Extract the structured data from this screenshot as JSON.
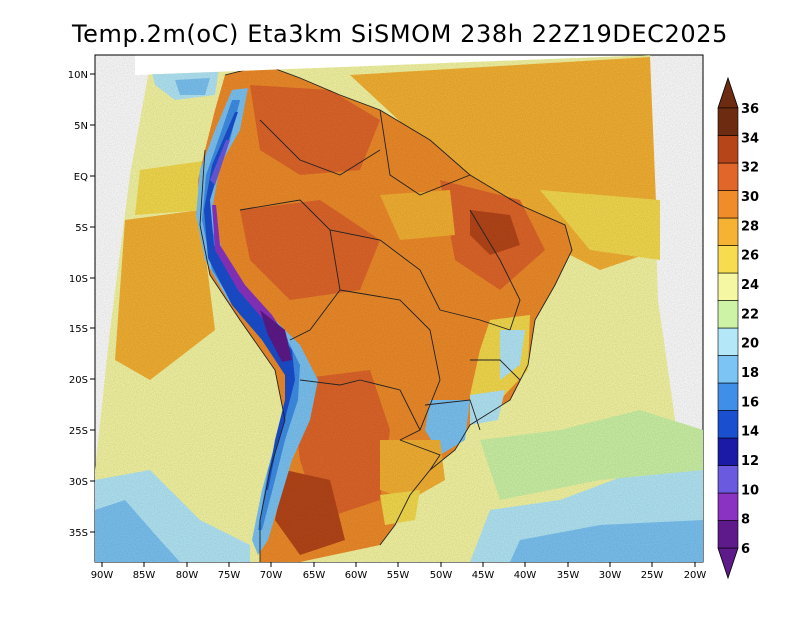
{
  "title": "Temp.2m(oC) Eta3km SiSMOM 238h 22Z19DEC2025",
  "map": {
    "lat_labels": [
      "10N",
      "5N",
      "EQ",
      "5S",
      "10S",
      "15S",
      "20S",
      "25S",
      "30S",
      "35S"
    ],
    "lon_labels": [
      "90W",
      "85W",
      "80W",
      "75W",
      "70W",
      "65W",
      "60W",
      "55W",
      "50W",
      "45W",
      "40W",
      "35W",
      "30W",
      "25W",
      "20W"
    ]
  },
  "colorbar": {
    "labels": [
      "6",
      "8",
      "10",
      "12",
      "14",
      "16",
      "18",
      "20",
      "22",
      "24",
      "26",
      "28",
      "30",
      "32",
      "34",
      "36"
    ],
    "colors": [
      "#5e1a8a",
      "#8a33c2",
      "#6a5ae0",
      "#1a1aa6",
      "#1a4fd0",
      "#3f8fe8",
      "#7cc4f4",
      "#b4e8f8",
      "#cdf4a6",
      "#f6f7a3",
      "#f6dc4e",
      "#f6b233",
      "#f08c2a",
      "#e0662a",
      "#b64619",
      "#6d2b12"
    ],
    "low_color": "#5e1a8a",
    "high_color": "#6d2b12"
  }
}
